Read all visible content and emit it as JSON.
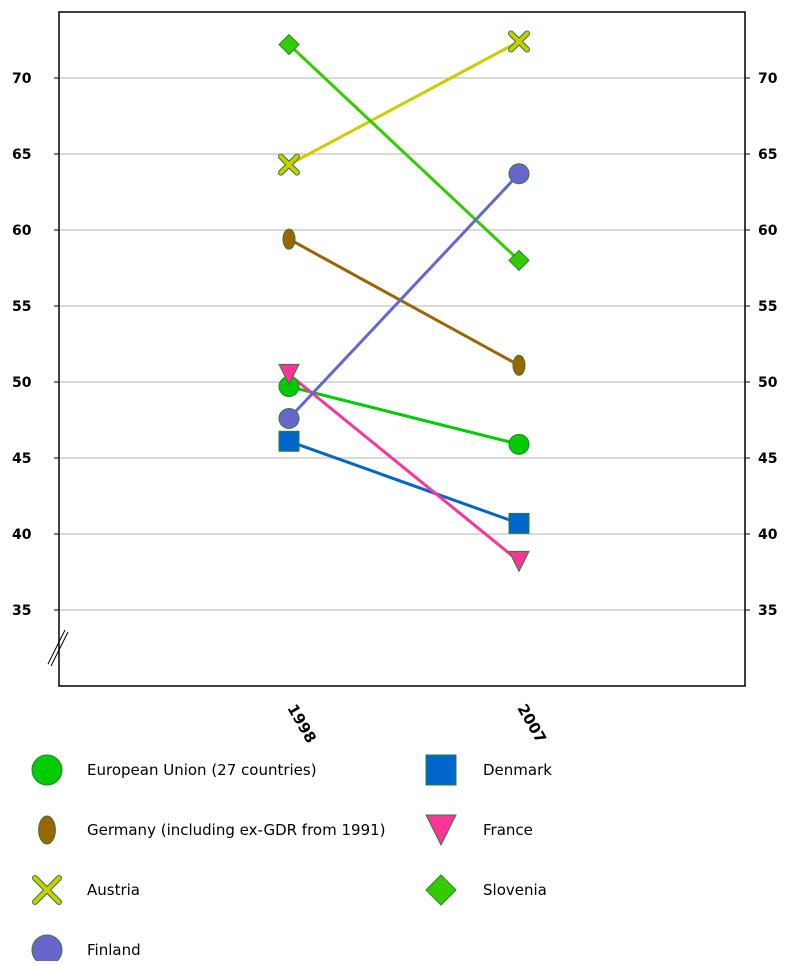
{
  "chart_data": {
    "type": "line",
    "x": [
      "1998",
      "2007"
    ],
    "ylim": [
      30,
      74
    ],
    "yticks": [
      35,
      40,
      45,
      50,
      55,
      60,
      65,
      70
    ],
    "grid": true,
    "legend_position": "bottom",
    "series": [
      {
        "name": "European Union (27 countries)",
        "values": [
          49.7,
          45.9
        ],
        "color": "#00cc00",
        "marker": "circle"
      },
      {
        "name": "Denmark",
        "values": [
          46.1,
          40.7
        ],
        "color": "#0066cc",
        "marker": "square"
      },
      {
        "name": "Germany (including ex-GDR from 1991)",
        "values": [
          59.4,
          51.1
        ],
        "color": "#996600",
        "marker": "ellipse"
      },
      {
        "name": "France",
        "values": [
          50.5,
          38.2
        ],
        "color": "#ff3399",
        "marker": "triangle-down"
      },
      {
        "name": "Austria",
        "values": [
          64.3,
          72.4
        ],
        "color": "#cccc00",
        "marker": "x"
      },
      {
        "name": "Slovenia",
        "values": [
          72.2,
          58.0
        ],
        "color": "#33cc00",
        "marker": "diamond"
      },
      {
        "name": "Finland",
        "values": [
          47.6,
          63.7
        ],
        "color": "#6666cc",
        "marker": "circle"
      }
    ]
  }
}
